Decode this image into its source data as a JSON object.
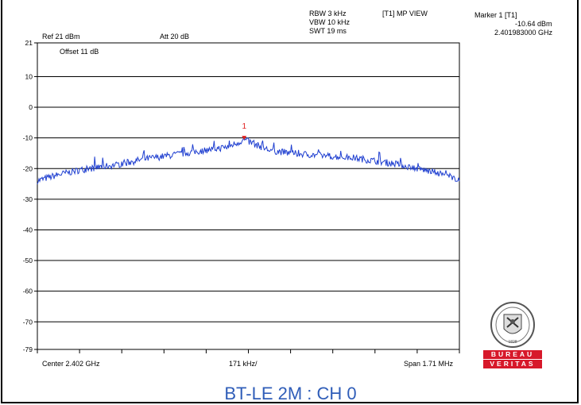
{
  "header": {
    "rbw": "RBW 3 kHz",
    "vbw": "VBW 10 kHz",
    "swt": "SWT 19 ms",
    "trace_view": "[T1] MP VIEW",
    "marker_title": "Marker 1 [T1]",
    "marker_level": "-10.64 dBm",
    "marker_freq": "2.401983000 GHz",
    "ref_level": "Ref 21 dBm",
    "attenuation": "Att  20 dB",
    "offset": "Offset 11 dB"
  },
  "footer": {
    "center": "Center 2.402 GHz",
    "per_div": "171 kHz/",
    "span": "Span 1.71 MHz"
  },
  "caption": "BT-LE 2M : CH 0",
  "logo": {
    "top_band": "BUREAU",
    "bottom_band": "VERITAS",
    "seal_text": "BUREAU VERITAS 1828"
  },
  "colors": {
    "trace": "#1f3fd0",
    "marker": "#e02020",
    "caption": "#2f5db8",
    "logo_red": "#d7182a"
  },
  "chart_data": {
    "type": "line",
    "title": "",
    "xlabel": "",
    "ylabel": "",
    "x_unit": "GHz",
    "y_unit": "dBm",
    "center_ghz": 2.402,
    "span_mhz": 1.71,
    "xlim": [
      2.401145,
      2.402855
    ],
    "ylim": [
      -79,
      21
    ],
    "y_ticks": [
      21,
      10,
      0,
      -10,
      -20,
      -30,
      -40,
      -50,
      -60,
      -70,
      -79
    ],
    "y_tick_labels": [
      "21",
      "10",
      "0",
      "-10",
      "-20",
      "-30",
      "-40",
      "-50",
      "-60",
      "-70",
      "-79"
    ],
    "x_divisions": 10,
    "grid": true,
    "marker": {
      "label": "1",
      "x": 2.401983,
      "y": -10.64
    },
    "series": [
      {
        "x": [
          2.401145,
          2.40123,
          2.401316,
          2.401401,
          2.401487,
          2.401572,
          2.401658,
          2.401743,
          2.401829,
          2.401914,
          2.401983,
          2.402085,
          2.402171,
          2.402256,
          2.402342,
          2.402427,
          2.402513,
          2.402598,
          2.402684,
          2.402769,
          2.402855
        ],
        "y": [
          -24,
          -22,
          -20.5,
          -19.5,
          -18.5,
          -17,
          -16,
          -15,
          -14,
          -13,
          -10.64,
          -14,
          -15,
          -15.5,
          -16,
          -16.5,
          -17.5,
          -18.5,
          -20,
          -21.5,
          -23.5
        ]
      }
    ]
  }
}
